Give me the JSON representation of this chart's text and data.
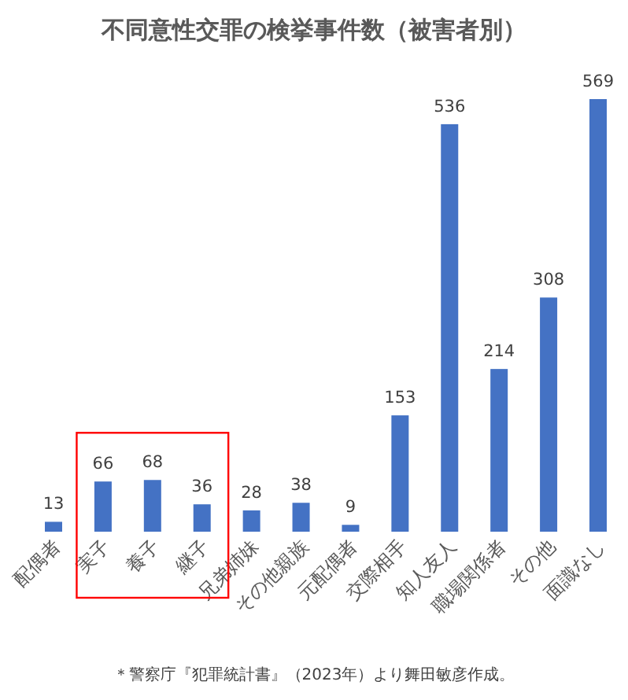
{
  "chart_data": {
    "type": "bar",
    "title": "不同意性交罪の検挙事件数（被害者別）",
    "categories": [
      "配偶者",
      "実子",
      "養子",
      "継子",
      "兄弟姉妹",
      "その他親族",
      "元配偶者",
      "交際相手",
      "知人友人",
      "職場関係者",
      "その他",
      "面識なし"
    ],
    "values": [
      13,
      66,
      68,
      36,
      28,
      38,
      9,
      153,
      536,
      214,
      308,
      569
    ],
    "color": "#4472c4",
    "data_labels": true,
    "annotations": [
      "＊警察庁『犯罪統計書』（2023年）より舞田敏彦作成。"
    ]
  }
}
